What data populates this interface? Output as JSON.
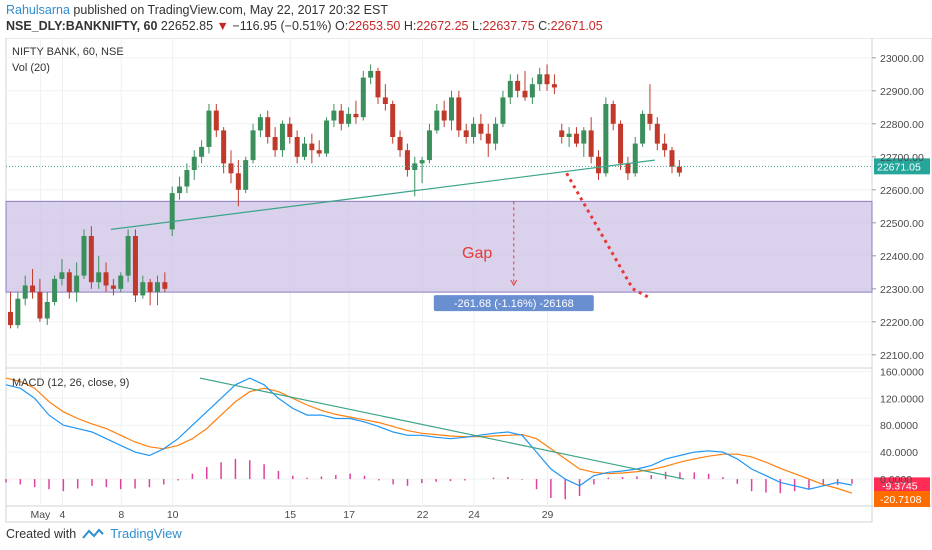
{
  "header": {
    "author": "Rahulsarna",
    "published_text": "published on TradingView.com, May 22, 2017 20:32 EST",
    "symbol": "NSE_DLY:BANKNIFTY, 60",
    "last": "22652.85",
    "change_arrow": "▼",
    "change": "−116.95 (−0.51%)",
    "o_label": "O:",
    "o_value": "22653.50",
    "h_label": "H:",
    "h_value": "22672.25",
    "l_label": "L:",
    "l_value": "22637.75",
    "c_label": "C:",
    "c_value": "22671.05"
  },
  "footer": {
    "created_with": "Created with",
    "brand": "TradingView",
    "logo_icon": "tradingview-logo-icon"
  },
  "colors": {
    "up": "#3b8f5c",
    "down": "#c0392b",
    "gap_fill": "#cdc3e6",
    "gap_border": "#8a7cc0",
    "trendline": "#3aa388",
    "macd": "#2196f3",
    "signal": "#ff7f0e",
    "hist": "#e040a0",
    "projection": "#e53935",
    "last_price_bg": "#26a69a",
    "macd_badge": "#ff2d55",
    "signal_badge": "#ff6d00"
  },
  "chart_data": {
    "type": "candlestick",
    "title": "NIFTY BANK, 60, NSE",
    "subtitle": "Vol (20)",
    "y_ticks": [
      "23000.00",
      "22900.00",
      "22800.00",
      "22700.00",
      "22600.00",
      "22500.00",
      "22400.00",
      "22300.00",
      "22200.00",
      "22100.00"
    ],
    "ylim": [
      22060,
      23060
    ],
    "last_price_label": "22671.05",
    "last_price": 22671.05,
    "x_ticks": [
      {
        "label": "May",
        "bar": 4
      },
      {
        "label": "4",
        "bar": 7
      },
      {
        "label": "8",
        "bar": 15
      },
      {
        "label": "10",
        "bar": 22
      },
      {
        "label": "15",
        "bar": 38
      },
      {
        "label": "17",
        "bar": 46
      },
      {
        "label": "22",
        "bar": 56
      },
      {
        "label": "24",
        "bar": 63
      },
      {
        "label": "29",
        "bar": 73
      }
    ],
    "candles": [
      [
        22230,
        22290,
        22180,
        22190
      ],
      [
        22190,
        22290,
        22180,
        22270
      ],
      [
        22270,
        22340,
        22250,
        22310
      ],
      [
        22310,
        22360,
        22270,
        22290
      ],
      [
        22290,
        22330,
        22200,
        22210
      ],
      [
        22210,
        22290,
        22190,
        22260
      ],
      [
        22260,
        22340,
        22250,
        22330
      ],
      [
        22330,
        22390,
        22310,
        22350
      ],
      [
        22350,
        22360,
        22270,
        22290
      ],
      [
        22290,
        22380,
        22260,
        22340
      ],
      [
        22340,
        22480,
        22330,
        22460
      ],
      [
        22460,
        22490,
        22300,
        22320
      ],
      [
        22320,
        22400,
        22300,
        22350
      ],
      [
        22350,
        22380,
        22290,
        22310
      ],
      [
        22310,
        22330,
        22280,
        22300
      ],
      [
        22300,
        22350,
        22290,
        22340
      ],
      [
        22340,
        22480,
        22320,
        22460
      ],
      [
        22460,
        22480,
        22260,
        22280
      ],
      [
        22280,
        22340,
        22270,
        22320
      ],
      [
        22320,
        22330,
        22250,
        22290
      ],
      [
        22290,
        22340,
        22250,
        22320
      ],
      [
        22320,
        22350,
        22290,
        22300
      ],
      [
        22480,
        22610,
        22460,
        22590
      ],
      [
        22590,
        22640,
        22570,
        22610
      ],
      [
        22610,
        22680,
        22590,
        22660
      ],
      [
        22660,
        22720,
        22630,
        22700
      ],
      [
        22700,
        22750,
        22680,
        22730
      ],
      [
        22730,
        22860,
        22710,
        22840
      ],
      [
        22840,
        22860,
        22760,
        22780
      ],
      [
        22780,
        22790,
        22650,
        22680
      ],
      [
        22680,
        22720,
        22620,
        22650
      ],
      [
        22650,
        22690,
        22550,
        22600
      ],
      [
        22600,
        22700,
        22590,
        22690
      ],
      [
        22690,
        22800,
        22680,
        22780
      ],
      [
        22780,
        22830,
        22760,
        22820
      ],
      [
        22820,
        22840,
        22740,
        22760
      ],
      [
        22760,
        22790,
        22700,
        22720
      ],
      [
        22720,
        22810,
        22700,
        22800
      ],
      [
        22800,
        22820,
        22740,
        22760
      ],
      [
        22760,
        22780,
        22680,
        22700
      ],
      [
        22700,
        22760,
        22690,
        22740
      ],
      [
        22740,
        22770,
        22680,
        22720
      ],
      [
        22720,
        22750,
        22700,
        22710
      ],
      [
        22710,
        22820,
        22700,
        22810
      ],
      [
        22810,
        22860,
        22790,
        22840
      ],
      [
        22840,
        22860,
        22780,
        22800
      ],
      [
        22800,
        22850,
        22790,
        22830
      ],
      [
        22830,
        22870,
        22800,
        22820
      ],
      [
        22820,
        22960,
        22810,
        22940
      ],
      [
        22940,
        22980,
        22920,
        22960
      ],
      [
        22960,
        22970,
        22860,
        22880
      ],
      [
        22880,
        22920,
        22840,
        22860
      ],
      [
        22860,
        22870,
        22740,
        22760
      ],
      [
        22760,
        22780,
        22700,
        22720
      ],
      [
        22720,
        22740,
        22640,
        22660
      ],
      [
        22660,
        22700,
        22580,
        22680
      ],
      [
        22680,
        22700,
        22620,
        22690
      ],
      [
        22690,
        22800,
        22680,
        22780
      ],
      [
        22780,
        22860,
        22770,
        22840
      ],
      [
        22840,
        22870,
        22790,
        22810
      ],
      [
        22810,
        22900,
        22780,
        22880
      ],
      [
        22880,
        22900,
        22760,
        22780
      ],
      [
        22780,
        22800,
        22740,
        22760
      ],
      [
        22760,
        22820,
        22740,
        22800
      ],
      [
        22800,
        22830,
        22750,
        22770
      ],
      [
        22770,
        22800,
        22700,
        22740
      ],
      [
        22740,
        22820,
        22720,
        22800
      ],
      [
        22800,
        22900,
        22790,
        22880
      ],
      [
        22880,
        22950,
        22860,
        22930
      ],
      [
        22930,
        22950,
        22880,
        22900
      ],
      [
        22900,
        22960,
        22870,
        22880
      ],
      [
        22880,
        22940,
        22860,
        22920
      ],
      [
        22920,
        22970,
        22900,
        22950
      ],
      [
        22950,
        22980,
        22900,
        22920
      ],
      [
        22920,
        22950,
        22890,
        22910
      ],
      [
        22780,
        22800,
        22740,
        22760
      ],
      [
        22760,
        22790,
        22730,
        22770
      ],
      [
        22770,
        22790,
        22730,
        22740
      ],
      [
        22740,
        22790,
        22700,
        22780
      ],
      [
        22780,
        22820,
        22680,
        22700
      ],
      [
        22700,
        22720,
        22630,
        22650
      ],
      [
        22650,
        22880,
        22640,
        22860
      ],
      [
        22860,
        22870,
        22780,
        22800
      ],
      [
        22800,
        22810,
        22660,
        22680
      ],
      [
        22680,
        22700,
        22630,
        22650
      ],
      [
        22650,
        22760,
        22640,
        22740
      ],
      [
        22740,
        22840,
        22730,
        22830
      ],
      [
        22830,
        22920,
        22780,
        22800
      ],
      [
        22800,
        22820,
        22720,
        22740
      ],
      [
        22740,
        22770,
        22700,
        22720
      ],
      [
        22720,
        22730,
        22650,
        22670
      ],
      [
        22670,
        22690,
        22640,
        22652
      ]
    ],
    "gap_zone": {
      "from": 22290,
      "to": 22565
    },
    "gap_label": "Gap",
    "gap_measure": "-261.68 (-1.16%) -26168",
    "trendline": {
      "from": {
        "bar": 14,
        "price": 22480
      },
      "to": {
        "bar": 88,
        "price": 22690
      }
    },
    "projection": {
      "from": {
        "bar": 76,
        "price": 22650
      },
      "to": {
        "bar": 85,
        "price": 22300
      }
    },
    "macd": {
      "label": "MACD (12, 26, close, 9)",
      "y_ticks": [
        "160.0000",
        "120.0000",
        "80.0000",
        "40.0000",
        "0.0000"
      ],
      "ylim": [
        -40,
        165
      ],
      "macd_value": "-9.3745",
      "signal_value": "-20.7108",
      "macd_last": -9.37,
      "signal_last": -20.71,
      "macd_line": [
        140,
        135,
        120,
        95,
        80,
        75,
        70,
        60,
        50,
        40,
        35,
        45,
        60,
        80,
        100,
        120,
        140,
        150,
        140,
        120,
        105,
        95,
        95,
        90,
        90,
        85,
        78,
        70,
        65,
        65,
        62,
        60,
        62,
        65,
        68,
        70,
        65,
        40,
        15,
        0,
        -10,
        5,
        10,
        12,
        15,
        20,
        30,
        35,
        40,
        42,
        40,
        30,
        15,
        5,
        -5,
        -10,
        -15,
        -10,
        -5,
        -9
      ],
      "signal_line": [
        150,
        145,
        135,
        115,
        100,
        90,
        82,
        75,
        65,
        55,
        48,
        45,
        50,
        60,
        75,
        95,
        115,
        130,
        135,
        130,
        120,
        110,
        102,
        96,
        92,
        88,
        84,
        78,
        72,
        68,
        66,
        64,
        63,
        63,
        64,
        65,
        66,
        60,
        45,
        30,
        15,
        10,
        8,
        9,
        11,
        14,
        19,
        25,
        30,
        34,
        37,
        37,
        33,
        25,
        16,
        8,
        0,
        -8,
        -14,
        -21
      ],
      "hist": [
        -5,
        -8,
        -12,
        -15,
        -18,
        -14,
        -10,
        -12,
        -15,
        -14,
        -12,
        -8,
        -2,
        8,
        18,
        25,
        30,
        28,
        22,
        12,
        5,
        2,
        4,
        6,
        8,
        5,
        -2,
        -8,
        -10,
        -6,
        -4,
        -3,
        -2,
        0,
        2,
        3,
        -1,
        -15,
        -28,
        -30,
        -25,
        -8,
        2,
        3,
        4,
        6,
        11,
        10,
        10,
        8,
        3,
        -7,
        -18,
        -20,
        -21,
        -18,
        -15,
        -10,
        -9,
        -7
      ]
    },
    "x_axis_ticks": [
      "May",
      "4",
      "8",
      "10",
      "15",
      "17",
      "22",
      "24",
      "29"
    ]
  }
}
